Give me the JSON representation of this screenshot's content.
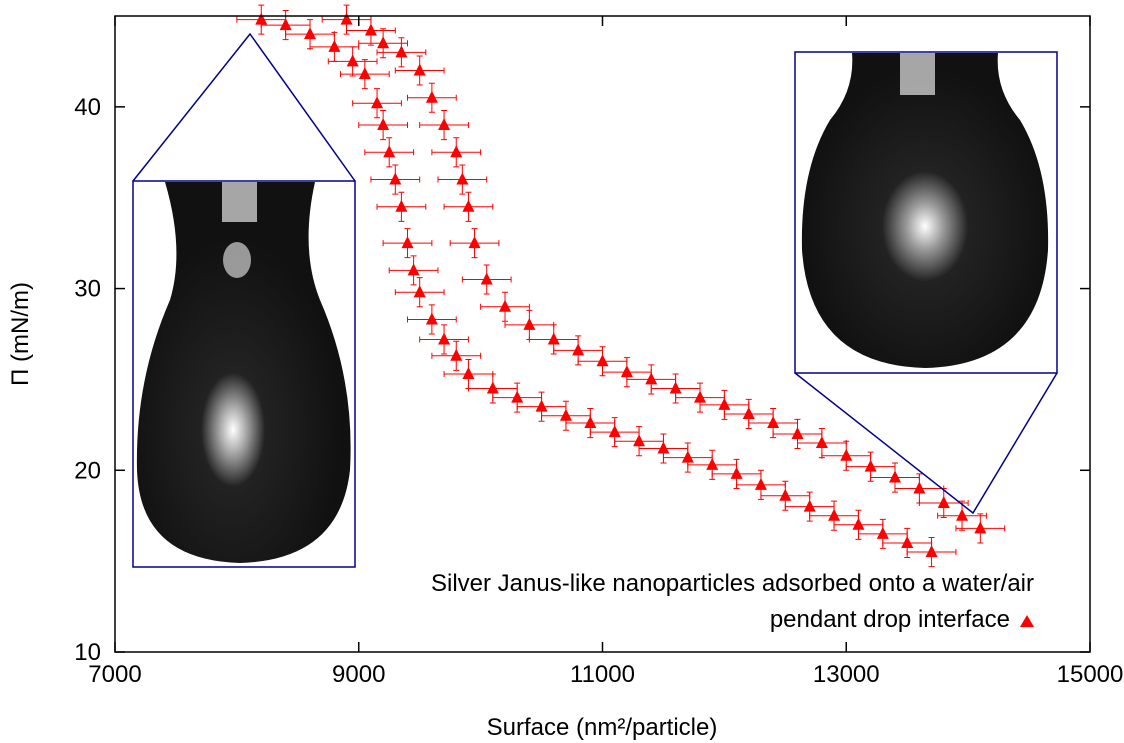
{
  "chart_data": {
    "type": "scatter",
    "xlabel": "Surface (nm²/particle)",
    "ylabel": "Π (mN/m)",
    "xlim": [
      7000,
      15000
    ],
    "xticks": [
      7000,
      9000,
      11000,
      13000,
      15000
    ],
    "ylim": [
      10,
      45
    ],
    "yticks": [
      10,
      20,
      30,
      40
    ],
    "series": [
      {
        "name": "Silver Janus-like nanoparticles adsorbed onto a water/air pendant drop interface",
        "color": "#ff0000",
        "marker": "triangle",
        "x": [
          13700,
          13500,
          13300,
          13100,
          12900,
          12700,
          12500,
          12300,
          12100,
          11900,
          11700,
          11500,
          11300,
          11100,
          10900,
          10700,
          10500,
          10300,
          10100,
          9900,
          9800,
          9700,
          9600,
          9500,
          9450,
          9400,
          9350,
          9300,
          9250,
          9200,
          9150,
          9050,
          8950,
          8800,
          8600,
          8400,
          8200,
          14100,
          13950,
          13800,
          13600,
          13400,
          13200,
          13000,
          12800,
          12600,
          12400,
          12200,
          12000,
          11800,
          11600,
          11400,
          11200,
          11000,
          10800,
          10600,
          10400,
          10200,
          10050,
          9950,
          9900,
          9850,
          9800,
          9700,
          9600,
          9500,
          9350,
          9200,
          9100,
          8900
        ],
        "values": [
          15.5,
          16.0,
          16.5,
          17.0,
          17.5,
          18.0,
          18.6,
          19.2,
          19.8,
          20.3,
          20.7,
          21.2,
          21.6,
          22.1,
          22.6,
          23.0,
          23.5,
          24.0,
          24.5,
          25.3,
          26.3,
          27.2,
          28.3,
          29.8,
          31.0,
          32.5,
          34.5,
          36.0,
          37.5,
          39.0,
          40.2,
          41.8,
          42.5,
          43.3,
          44.0,
          44.5,
          44.8,
          16.8,
          17.5,
          18.2,
          19.0,
          19.6,
          20.2,
          20.8,
          21.5,
          22.0,
          22.6,
          23.1,
          23.6,
          24.0,
          24.5,
          25.0,
          25.4,
          26.0,
          26.6,
          27.2,
          28.0,
          29.0,
          30.5,
          32.5,
          34.5,
          36.0,
          37.5,
          39.0,
          40.5,
          42.0,
          43.0,
          43.5,
          44.2,
          44.8
        ],
        "xerr": 200,
        "yerr": 0.8
      }
    ]
  }
}
